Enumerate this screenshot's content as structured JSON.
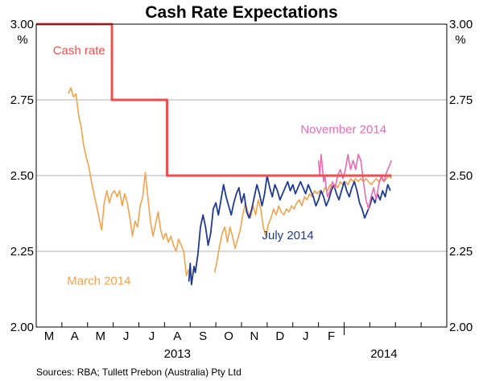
{
  "chart_data": {
    "type": "line",
    "title": "Cash Rate Expectations",
    "ylabel_left": "%",
    "ylabel_right": "%",
    "ylim": [
      2.0,
      3.0
    ],
    "y_ticks": [
      "2.00",
      "2.25",
      "2.50",
      "2.75",
      "3.00"
    ],
    "y_tick_values": [
      2.0,
      2.25,
      2.5,
      2.75,
      3.0
    ],
    "x_range_months": [
      0,
      16
    ],
    "month_labels": [
      "M",
      "A",
      "M",
      "J",
      "J",
      "A",
      "S",
      "O",
      "N",
      "D",
      "J",
      "F"
    ],
    "month_start_index": 2,
    "year_labels": [
      {
        "text": "2013",
        "month_index": 7.5
      },
      {
        "text": "2014",
        "month_index": 15.55
      }
    ],
    "source": "Sources: RBA; Tullett Prebon (Australia) Pty Ltd",
    "colors": {
      "cash_rate": "#f04e4e",
      "march_2014": "#f5a24a",
      "july_2014": "#1f3a93",
      "november_2014": "#e86bb4",
      "gridline": "#b3b3b3",
      "axis": "#000000"
    },
    "annotations": [
      {
        "text": "Cash rate",
        "series": "cash_rate",
        "x": 2.65,
        "y": 2.9
      },
      {
        "text": "March 2014",
        "series": "march_2014",
        "x": 3.2,
        "y": 2.14
      },
      {
        "text": "July 2014",
        "series": "july_2014",
        "x": 10.8,
        "y": 2.29
      },
      {
        "text": "November 2014",
        "series": "november_2014",
        "x": 12.3,
        "y": 2.64
      }
    ],
    "series": [
      {
        "name": "Cash rate",
        "key": "cash_rate",
        "step": true,
        "points": [
          [
            2.0,
            3.0
          ],
          [
            4.95,
            3.0
          ],
          [
            4.95,
            2.75
          ],
          [
            7.1,
            2.75
          ],
          [
            7.1,
            2.5
          ],
          [
            15.85,
            2.5
          ]
        ]
      },
      {
        "name": "March 2014",
        "key": "march_2014",
        "points": [
          [
            3.25,
            2.77
          ],
          [
            3.35,
            2.79
          ],
          [
            3.45,
            2.76
          ],
          [
            3.55,
            2.77
          ],
          [
            3.65,
            2.7
          ],
          [
            3.75,
            2.66
          ],
          [
            3.85,
            2.6
          ],
          [
            3.95,
            2.56
          ],
          [
            4.05,
            2.53
          ],
          [
            4.15,
            2.48
          ],
          [
            4.25,
            2.44
          ],
          [
            4.35,
            2.4
          ],
          [
            4.45,
            2.36
          ],
          [
            4.55,
            2.32
          ],
          [
            4.65,
            2.41
          ],
          [
            4.75,
            2.45
          ],
          [
            4.85,
            2.41
          ],
          [
            4.95,
            2.44
          ],
          [
            5.05,
            2.45
          ],
          [
            5.15,
            2.43
          ],
          [
            5.25,
            2.45
          ],
          [
            5.35,
            2.4
          ],
          [
            5.45,
            2.44
          ],
          [
            5.55,
            2.41
          ],
          [
            5.65,
            2.36
          ],
          [
            5.75,
            2.3
          ],
          [
            5.85,
            2.35
          ],
          [
            5.95,
            2.33
          ],
          [
            6.05,
            2.4
          ],
          [
            6.15,
            2.43
          ],
          [
            6.25,
            2.51
          ],
          [
            6.35,
            2.43
          ],
          [
            6.45,
            2.35
          ],
          [
            6.55,
            2.3
          ],
          [
            6.65,
            2.34
          ],
          [
            6.75,
            2.38
          ],
          [
            6.85,
            2.32
          ],
          [
            6.95,
            2.29
          ],
          [
            7.05,
            2.31
          ],
          [
            7.15,
            2.28
          ],
          [
            7.25,
            2.3
          ],
          [
            7.35,
            2.27
          ],
          [
            7.45,
            2.25
          ],
          [
            7.55,
            2.29
          ],
          [
            7.65,
            2.27
          ],
          [
            7.75,
            2.25
          ],
          [
            7.85,
            2.17
          ],
          [
            7.95,
            2.19
          ]
        ]
      },
      {
        "name": "March 2014 (cont.)",
        "key": "march_2014",
        "points": [
          [
            8.95,
            2.18
          ],
          [
            9.05,
            2.22
          ],
          [
            9.15,
            2.27
          ],
          [
            9.25,
            2.31
          ],
          [
            9.35,
            2.33
          ],
          [
            9.45,
            2.28
          ],
          [
            9.55,
            2.33
          ],
          [
            9.65,
            2.3
          ],
          [
            9.75,
            2.26
          ],
          [
            9.85,
            2.29
          ],
          [
            9.95,
            2.32
          ],
          [
            10.05,
            2.37
          ],
          [
            10.15,
            2.41
          ],
          [
            10.25,
            2.38
          ],
          [
            10.35,
            2.36
          ],
          [
            10.45,
            2.4
          ],
          [
            10.55,
            2.37
          ],
          [
            10.65,
            2.42
          ],
          [
            10.75,
            2.39
          ],
          [
            10.85,
            2.33
          ],
          [
            10.95,
            2.3
          ],
          [
            11.05,
            2.34
          ],
          [
            11.15,
            2.36
          ],
          [
            11.25,
            2.39
          ],
          [
            11.35,
            2.37
          ],
          [
            11.45,
            2.4
          ],
          [
            11.55,
            2.38
          ],
          [
            11.65,
            2.37
          ],
          [
            11.75,
            2.39
          ],
          [
            11.85,
            2.38
          ],
          [
            11.95,
            2.4
          ],
          [
            12.05,
            2.39
          ],
          [
            12.15,
            2.41
          ],
          [
            12.25,
            2.42
          ],
          [
            12.35,
            2.4
          ],
          [
            12.45,
            2.43
          ],
          [
            12.55,
            2.42
          ],
          [
            12.65,
            2.44
          ],
          [
            12.75,
            2.43
          ],
          [
            12.85,
            2.45
          ],
          [
            12.95,
            2.44
          ],
          [
            13.05,
            2.45
          ],
          [
            13.15,
            2.44
          ],
          [
            13.25,
            2.46
          ],
          [
            13.35,
            2.45
          ],
          [
            13.45,
            2.47
          ],
          [
            13.55,
            2.46
          ],
          [
            13.65,
            2.47
          ],
          [
            13.75,
            2.46
          ],
          [
            13.85,
            2.48
          ],
          [
            13.95,
            2.47
          ],
          [
            14.05,
            2.48
          ],
          [
            14.15,
            2.47
          ],
          [
            14.25,
            2.49
          ],
          [
            14.35,
            2.48
          ],
          [
            14.45,
            2.49
          ],
          [
            14.55,
            2.48
          ],
          [
            14.65,
            2.49
          ],
          [
            14.75,
            2.48
          ],
          [
            14.85,
            2.49
          ],
          [
            14.95,
            2.48
          ],
          [
            15.05,
            2.47
          ],
          [
            15.15,
            2.48
          ],
          [
            15.25,
            2.49
          ],
          [
            15.35,
            2.48
          ],
          [
            15.45,
            2.49
          ],
          [
            15.55,
            2.48
          ],
          [
            15.65,
            2.49
          ],
          [
            15.75,
            2.5
          ],
          [
            15.85,
            2.49
          ]
        ]
      },
      {
        "name": "July 2014",
        "key": "july_2014",
        "points": [
          [
            7.95,
            2.15
          ],
          [
            8.0,
            2.21
          ],
          [
            8.05,
            2.14
          ],
          [
            8.1,
            2.17
          ],
          [
            8.15,
            2.2
          ],
          [
            8.2,
            2.18
          ],
          [
            8.3,
            2.24
          ],
          [
            8.4,
            2.33
          ],
          [
            8.5,
            2.37
          ],
          [
            8.6,
            2.33
          ],
          [
            8.7,
            2.27
          ],
          [
            8.8,
            2.31
          ],
          [
            8.9,
            2.39
          ],
          [
            9.0,
            2.41
          ],
          [
            9.1,
            2.37
          ],
          [
            9.2,
            2.42
          ],
          [
            9.3,
            2.47
          ],
          [
            9.4,
            2.43
          ],
          [
            9.5,
            2.4
          ],
          [
            9.6,
            2.37
          ],
          [
            9.7,
            2.41
          ],
          [
            9.8,
            2.44
          ],
          [
            9.9,
            2.46
          ],
          [
            10.0,
            2.41
          ],
          [
            10.1,
            2.44
          ],
          [
            10.2,
            2.38
          ],
          [
            10.3,
            2.36
          ],
          [
            10.4,
            2.39
          ],
          [
            10.5,
            2.43
          ],
          [
            10.6,
            2.47
          ],
          [
            10.7,
            2.44
          ],
          [
            10.8,
            2.4
          ],
          [
            10.9,
            2.44
          ],
          [
            11.0,
            2.5
          ],
          [
            11.1,
            2.46
          ],
          [
            11.2,
            2.43
          ],
          [
            11.3,
            2.47
          ],
          [
            11.4,
            2.45
          ],
          [
            11.5,
            2.42
          ],
          [
            11.6,
            2.44
          ],
          [
            11.7,
            2.46
          ],
          [
            11.8,
            2.48
          ],
          [
            11.9,
            2.45
          ],
          [
            12.0,
            2.47
          ],
          [
            12.1,
            2.44
          ],
          [
            12.2,
            2.46
          ],
          [
            12.3,
            2.48
          ],
          [
            12.4,
            2.46
          ],
          [
            12.5,
            2.44
          ],
          [
            12.6,
            2.47
          ],
          [
            12.7,
            2.45
          ],
          [
            12.8,
            2.43
          ],
          [
            12.9,
            2.4
          ],
          [
            13.0,
            2.42
          ],
          [
            13.1,
            2.45
          ],
          [
            13.2,
            2.43
          ],
          [
            13.3,
            2.4
          ],
          [
            13.4,
            2.42
          ],
          [
            13.5,
            2.45
          ],
          [
            13.6,
            2.47
          ],
          [
            13.7,
            2.44
          ],
          [
            13.8,
            2.42
          ],
          [
            13.9,
            2.45
          ],
          [
            14.0,
            2.48
          ],
          [
            14.1,
            2.45
          ],
          [
            14.2,
            2.43
          ],
          [
            14.3,
            2.46
          ],
          [
            14.4,
            2.48
          ],
          [
            14.5,
            2.45
          ],
          [
            14.6,
            2.41
          ],
          [
            14.7,
            2.39
          ],
          [
            14.8,
            2.36
          ],
          [
            14.9,
            2.38
          ],
          [
            15.0,
            2.4
          ],
          [
            15.1,
            2.43
          ],
          [
            15.2,
            2.41
          ],
          [
            15.3,
            2.44
          ],
          [
            15.4,
            2.42
          ],
          [
            15.5,
            2.45
          ],
          [
            15.6,
            2.43
          ],
          [
            15.7,
            2.47
          ],
          [
            15.8,
            2.45
          ]
        ]
      },
      {
        "name": "November 2014",
        "key": "november_2014",
        "points": [
          [
            13.0,
            2.55
          ],
          [
            13.05,
            2.5
          ],
          [
            13.1,
            2.57
          ],
          [
            13.15,
            2.53
          ],
          [
            13.2,
            2.48
          ],
          [
            13.25,
            2.5
          ],
          [
            13.3,
            2.46
          ],
          [
            13.35,
            2.43
          ],
          [
            13.45,
            2.45
          ],
          [
            13.55,
            2.48
          ],
          [
            13.65,
            2.46
          ],
          [
            13.75,
            2.5
          ],
          [
            13.85,
            2.52
          ],
          [
            13.95,
            2.49
          ],
          [
            14.05,
            2.52
          ],
          [
            14.15,
            2.57
          ],
          [
            14.25,
            2.52
          ],
          [
            14.35,
            2.55
          ],
          [
            14.45,
            2.52
          ],
          [
            14.55,
            2.57
          ],
          [
            14.65,
            2.55
          ],
          [
            14.75,
            2.48
          ],
          [
            14.85,
            2.42
          ],
          [
            14.95,
            2.39
          ],
          [
            15.05,
            2.43
          ],
          [
            15.15,
            2.46
          ],
          [
            15.25,
            2.42
          ],
          [
            15.35,
            2.47
          ],
          [
            15.45,
            2.5
          ],
          [
            15.55,
            2.48
          ],
          [
            15.65,
            2.51
          ],
          [
            15.75,
            2.53
          ],
          [
            15.85,
            2.55
          ]
        ]
      }
    ]
  }
}
